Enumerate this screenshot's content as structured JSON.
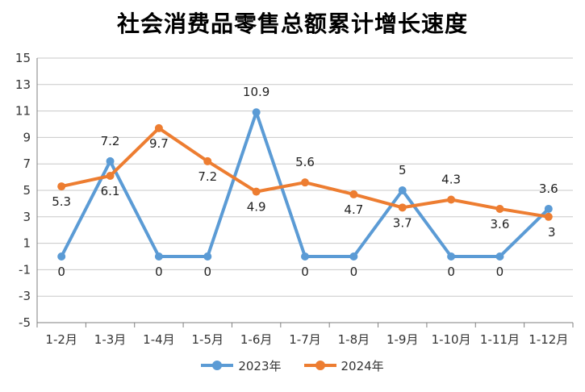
{
  "chart_data": {
    "type": "line",
    "title": "社会消费品零售总额累计增长速度",
    "categories": [
      "1-2月",
      "1-3月",
      "1-4月",
      "1-5月",
      "1-6月",
      "1-7月",
      "1-8月",
      "1-9月",
      "1-10月",
      "1-11月",
      "1-12月"
    ],
    "ylim": [
      -5,
      15
    ],
    "yticks": [
      15,
      13,
      11,
      9,
      7,
      5,
      3,
      1,
      -1,
      -3,
      -5
    ],
    "grid": true,
    "legend_position": "bottom",
    "series": [
      {
        "name": "2023年",
        "color": "#5B9BD5",
        "values": [
          0,
          7.2,
          0,
          0,
          10.9,
          0,
          0,
          5,
          0,
          0,
          3.6
        ],
        "labels": [
          "0",
          "7.2",
          "0",
          "0",
          "10.9",
          "0",
          "0",
          "5",
          "0",
          "0",
          "3.6"
        ]
      },
      {
        "name": "2024年",
        "color": "#ED7D31",
        "values": [
          5.3,
          6.1,
          9.7,
          7.2,
          4.9,
          5.6,
          4.7,
          3.7,
          4.3,
          3.6,
          3
        ],
        "labels": [
          "5.3",
          "6.1",
          "9.7",
          "7.2",
          "4.9",
          "5.6",
          "4.7",
          "3.7",
          "4.3",
          "3.6",
          "3"
        ]
      }
    ]
  }
}
